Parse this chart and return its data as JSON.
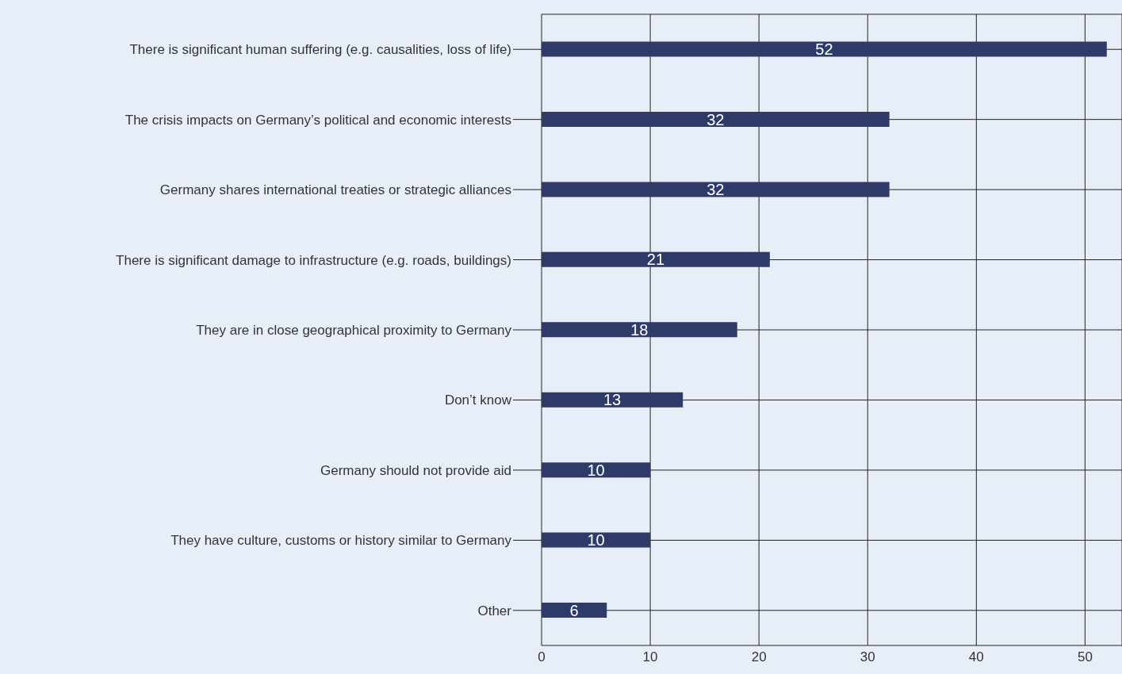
{
  "chart_data": {
    "type": "bar",
    "orientation": "horizontal",
    "categories": [
      "There is significant human suffering (e.g. causalities, loss of life)",
      "The crisis impacts on Germany’s political and economic interests",
      "Germany shares international treaties or strategic alliances",
      "There is significant damage to infrastructure (e.g. roads, buildings)",
      "They are in close geographical proximity to Germany",
      "Don’t know",
      "Germany should not provide aid",
      "They have culture, customs or history similar to Germany",
      "Other"
    ],
    "values": [
      52,
      32,
      32,
      21,
      18,
      13,
      10,
      10,
      6
    ],
    "color": "#2e3a68",
    "xlim": [
      0,
      53.4
    ],
    "xticks": [
      0,
      10,
      20,
      30,
      40,
      50
    ],
    "grid": true,
    "data_labels": true
  }
}
